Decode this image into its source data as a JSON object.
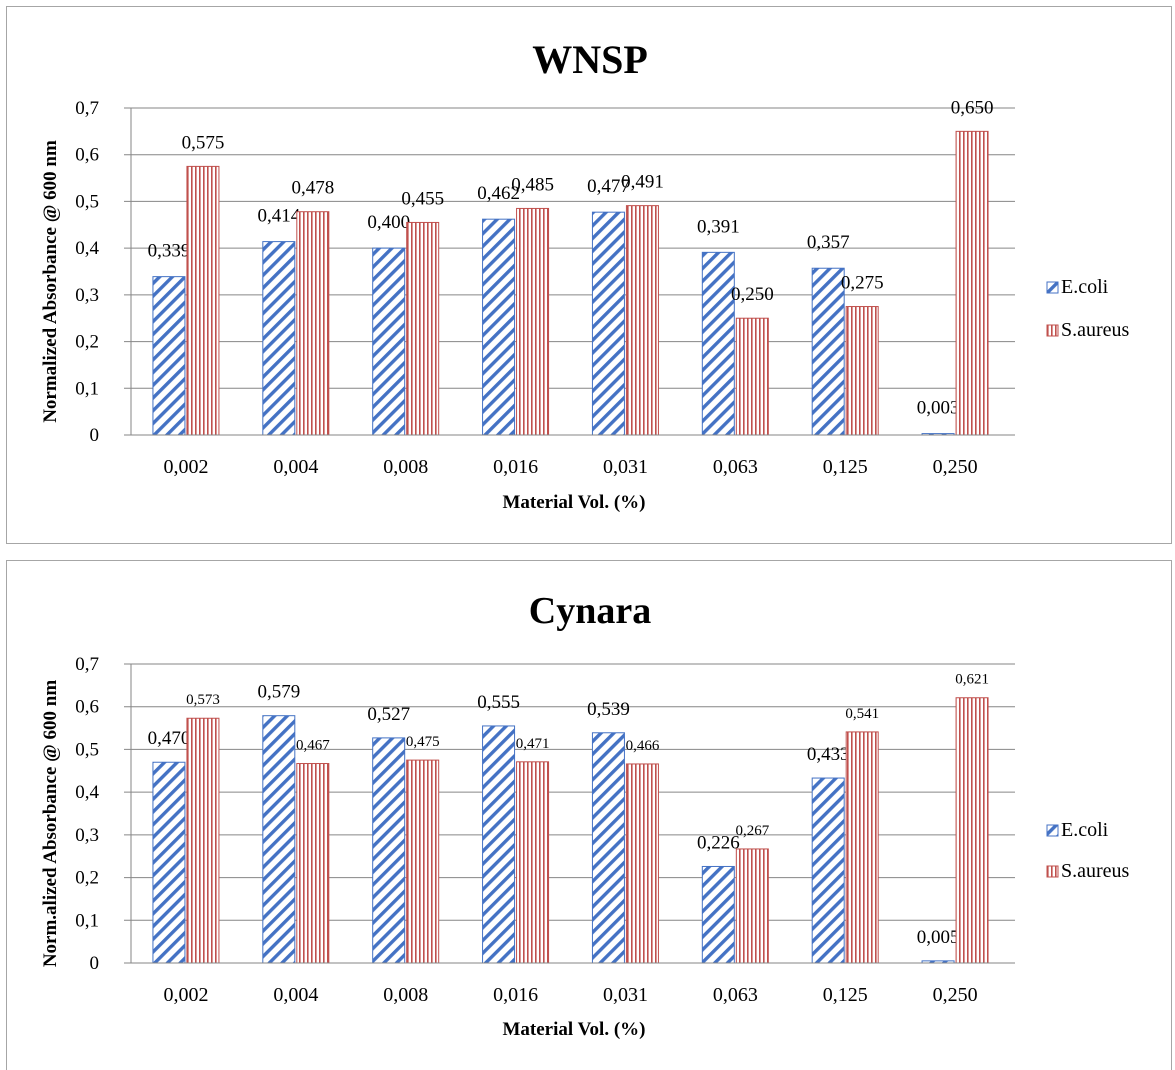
{
  "colors": {
    "ecoli": "#4472c4",
    "saureus": "#c0504d",
    "grid": "#868686",
    "axis": "#868686"
  },
  "chart_data": [
    {
      "type": "bar",
      "title": "WNSP",
      "xlabel": "Material Vol. (%)",
      "ylabel": "Normalized Absorbance @ 600 nm",
      "ylim": [
        0,
        0.7
      ],
      "yticks": [
        "0",
        "0,1",
        "0,2",
        "0,3",
        "0,4",
        "0,5",
        "0,6",
        "0,7"
      ],
      "grid": true,
      "legend_position": "right",
      "categories": [
        "0,002",
        "0,004",
        "0,008",
        "0,016",
        "0,031",
        "0,063",
        "0,125",
        "0,250"
      ],
      "series": [
        {
          "name": "E.coli",
          "pattern": "diagonal-hatch",
          "values": [
            0.339,
            0.414,
            0.4,
            0.462,
            0.477,
            0.391,
            0.357,
            0.003
          ],
          "labels": [
            "0,339",
            "0,414",
            "0,400",
            "0,462",
            "0,477",
            "0,391",
            "0,357",
            "0,003"
          ]
        },
        {
          "name": "S.aureus",
          "pattern": "vertical-lines",
          "values": [
            0.575,
            0.478,
            0.455,
            0.485,
            0.491,
            0.25,
            0.275,
            0.65
          ],
          "labels": [
            "0,575",
            "0,478",
            "0,455",
            "0,485",
            "0,491",
            "0,250",
            "0,275",
            "0,650"
          ]
        }
      ]
    },
    {
      "type": "bar",
      "title": "Cynara",
      "xlabel": "Material Vol. (%)",
      "ylabel": "Norm.alized Absorbance @ 600 nm",
      "ylim": [
        0,
        0.7
      ],
      "yticks": [
        "0",
        "0,1",
        "0,2",
        "0,3",
        "0,4",
        "0,5",
        "0,6",
        "0,7"
      ],
      "grid": true,
      "legend_position": "right",
      "categories": [
        "0,002",
        "0,004",
        "0,008",
        "0,016",
        "0,031",
        "0,063",
        "0,125",
        "0,250"
      ],
      "series": [
        {
          "name": "E.coli",
          "pattern": "diagonal-hatch",
          "values": [
            0.47,
            0.579,
            0.527,
            0.555,
            0.539,
            0.226,
            0.433,
            0.005
          ],
          "labels": [
            "0,470",
            "0,579",
            "0,527",
            "0,555",
            "0,539",
            "0,226",
            "0,433",
            "0,005"
          ]
        },
        {
          "name": "S.aureus",
          "pattern": "vertical-lines",
          "values": [
            0.573,
            0.467,
            0.475,
            0.471,
            0.466,
            0.267,
            0.541,
            0.621
          ],
          "labels": [
            "0,573",
            "0,467",
            "0,475",
            "0,471",
            "0,466",
            "0,267",
            "0,541",
            "0,621"
          ]
        }
      ]
    }
  ]
}
